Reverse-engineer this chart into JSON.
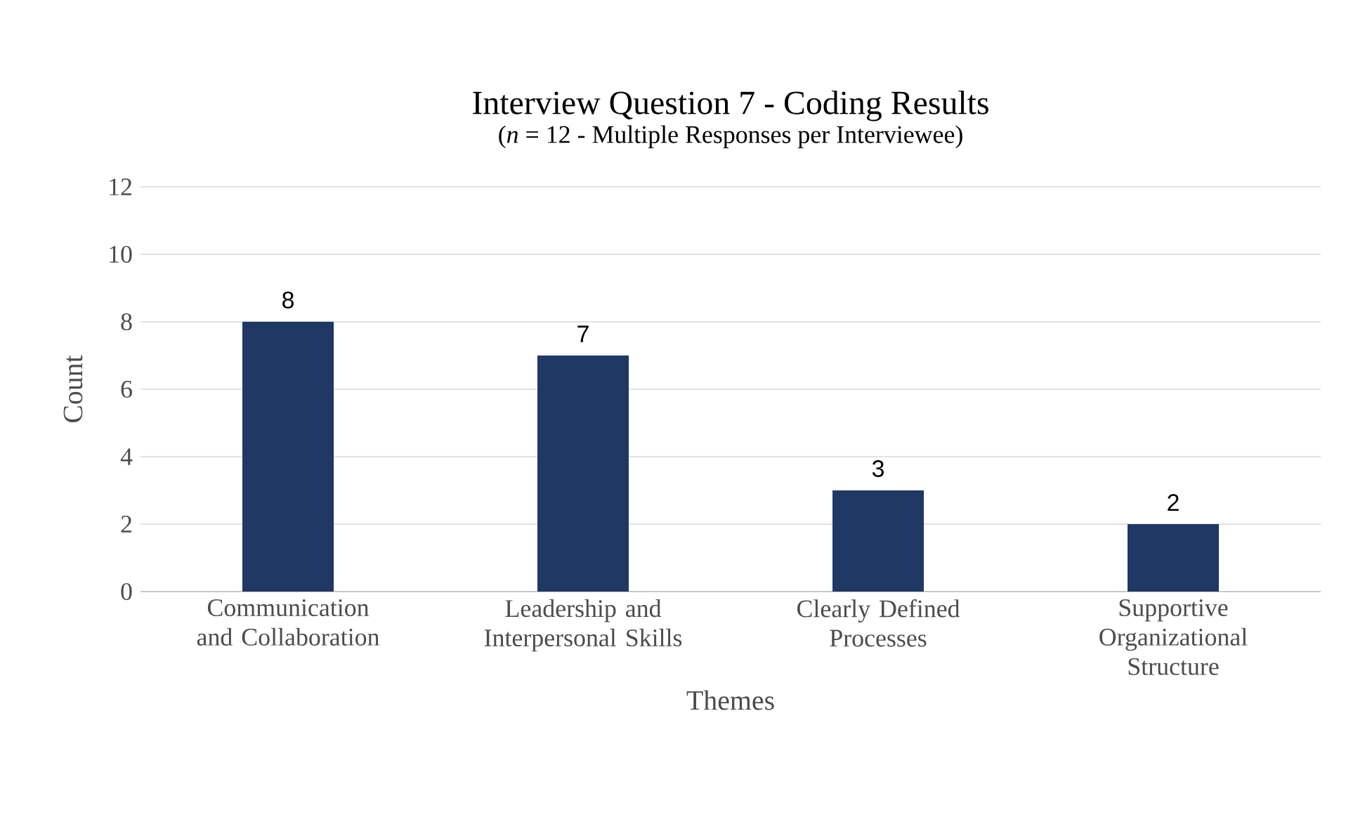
{
  "chart_data": {
    "type": "bar",
    "title": "Interview Question 7 - Coding Results",
    "subtitle": "(*n* = 12 - Multiple Responses per Interviewee)",
    "xlabel": "Themes",
    "ylabel": "Count",
    "categories": [
      "Communication and Collaboration",
      "Leadership and Interpersonal Skills",
      "Clearly Defined Processes",
      "Supportive Organizational Structure"
    ],
    "values": [
      8,
      7,
      3,
      2
    ],
    "color": "#1f3864",
    "ylim": [
      0,
      12
    ],
    "yticks": [
      0,
      2,
      4,
      6,
      8,
      10,
      12
    ],
    "grid": "y",
    "data_labels": true
  }
}
